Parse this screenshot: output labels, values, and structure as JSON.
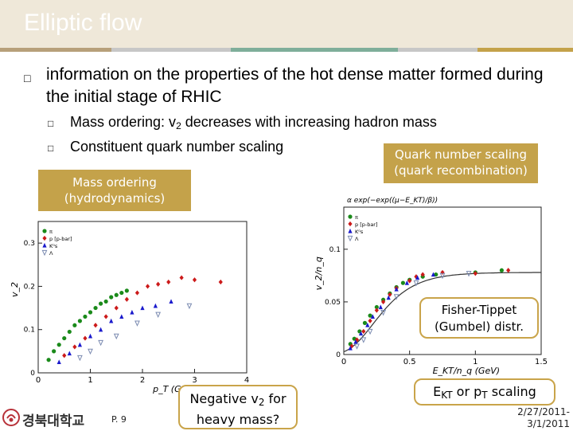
{
  "slide": {
    "title": "Elliptic flow",
    "bullet_main": "information on the properties of the hot dense matter formed during the initial stage of RHIC",
    "bullet_sub1_pre": "Mass ordering: v",
    "bullet_sub1_sub": "2",
    "bullet_sub1_post": " decreases with increasing hadron mass",
    "bullet_sub2": "Constituent quark number scaling",
    "tag_left_line1": "Mass ordering",
    "tag_left_line2": "(hydrodynamics)",
    "tag_right_line1": "Quark number scaling",
    "tag_right_line2": "(quark recombination)",
    "callout_fisher_line1": "Fisher-Tippet",
    "callout_fisher_line2": "(Gumbel) distr.",
    "callout_negative_pre": "Negative v",
    "callout_negative_sub": "2",
    "callout_negative_post": " for",
    "callout_negative_line2": "heavy mass?",
    "scaling_label_pre": "E",
    "scaling_label_sub1": "KT",
    "scaling_label_mid": " or p",
    "scaling_label_sub2": "T",
    "scaling_label_post": " scaling",
    "page_number": "P. 9",
    "university": "경북대학교",
    "date_line1": "2/27/2011-",
    "date_line2": "3/1/2011"
  },
  "colors": {
    "tag_bg": "#c4a24a",
    "stripes": [
      "#b7a07a",
      "#c7c7c7",
      "#7fae9a",
      "#c7c7c7",
      "#c4a24a"
    ],
    "pion": "#1a8a1a",
    "proton": "#cc1a1a",
    "kaon": "#1a1acc",
    "lambda": "#7a8ab0"
  },
  "chart_data": [
    {
      "type": "scatter",
      "title": "",
      "xlabel": "p_T (GeV)",
      "ylabel": "v_2",
      "xlim": [
        0,
        4
      ],
      "ylim": [
        0,
        0.35
      ],
      "x_ticks": [
        "0",
        "1",
        "2",
        "3",
        "4"
      ],
      "y_ticks": [
        "0",
        "0.1",
        "0.2",
        "0.3"
      ],
      "legend": [
        "π",
        "p [p-bar]",
        "K⁰s",
        "Λ"
      ],
      "legend_position": "top-left",
      "series": [
        {
          "name": "π",
          "points": [
            [
              0.2,
              0.03
            ],
            [
              0.3,
              0.05
            ],
            [
              0.4,
              0.065
            ],
            [
              0.5,
              0.08
            ],
            [
              0.6,
              0.095
            ],
            [
              0.7,
              0.11
            ],
            [
              0.8,
              0.12
            ],
            [
              0.9,
              0.13
            ],
            [
              1.0,
              0.14
            ],
            [
              1.1,
              0.15
            ],
            [
              1.2,
              0.16
            ],
            [
              1.3,
              0.165
            ],
            [
              1.4,
              0.175
            ],
            [
              1.5,
              0.18
            ],
            [
              1.6,
              0.185
            ],
            [
              1.7,
              0.19
            ]
          ]
        },
        {
          "name": "p [p-bar]",
          "points": [
            [
              0.5,
              0.04
            ],
            [
              0.7,
              0.06
            ],
            [
              0.9,
              0.08
            ],
            [
              1.1,
              0.11
            ],
            [
              1.3,
              0.13
            ],
            [
              1.5,
              0.15
            ],
            [
              1.7,
              0.17
            ],
            [
              1.9,
              0.185
            ],
            [
              2.1,
              0.2
            ],
            [
              2.3,
              0.205
            ],
            [
              2.5,
              0.21
            ],
            [
              2.75,
              0.22
            ],
            [
              3.0,
              0.215
            ],
            [
              3.5,
              0.21
            ]
          ]
        },
        {
          "name": "K⁰s",
          "points": [
            [
              0.4,
              0.025
            ],
            [
              0.6,
              0.045
            ],
            [
              0.8,
              0.065
            ],
            [
              1.0,
              0.085
            ],
            [
              1.2,
              0.1
            ],
            [
              1.4,
              0.12
            ],
            [
              1.6,
              0.13
            ],
            [
              1.8,
              0.14
            ],
            [
              2.0,
              0.15
            ],
            [
              2.25,
              0.155
            ],
            [
              2.55,
              0.165
            ]
          ]
        },
        {
          "name": "Λ",
          "points": [
            [
              0.8,
              0.035
            ],
            [
              1.0,
              0.05
            ],
            [
              1.2,
              0.07
            ],
            [
              1.5,
              0.085
            ],
            [
              1.9,
              0.115
            ],
            [
              2.3,
              0.135
            ],
            [
              2.9,
              0.155
            ]
          ]
        }
      ]
    },
    {
      "type": "scatter",
      "title": "α exp(−exp((μ−E_KT)/β))",
      "xlabel": "E_KT/n_q (GeV)",
      "ylabel": "v_2/n_q",
      "xlim": [
        0,
        1.5
      ],
      "ylim": [
        0,
        0.14
      ],
      "x_ticks": [
        "0",
        "0.5",
        "1",
        "1.5"
      ],
      "y_ticks": [
        "0",
        "0.05",
        "0.1"
      ],
      "legend": [
        "π",
        "p [p-bar]",
        "K⁰s",
        "Λ"
      ],
      "legend_position": "top-left",
      "fit_curve": {
        "alpha": 0.078,
        "mu": 0.22,
        "beta": 0.18
      },
      "series": [
        {
          "name": "π",
          "points": [
            [
              0.05,
              0.01
            ],
            [
              0.08,
              0.015
            ],
            [
              0.12,
              0.022
            ],
            [
              0.16,
              0.03
            ],
            [
              0.2,
              0.037
            ],
            [
              0.25,
              0.045
            ],
            [
              0.3,
              0.052
            ],
            [
              0.35,
              0.058
            ],
            [
              0.4,
              0.064
            ],
            [
              0.45,
              0.068
            ],
            [
              0.5,
              0.071
            ],
            [
              0.6,
              0.074
            ],
            [
              0.7,
              0.076
            ],
            [
              1.0,
              0.078
            ],
            [
              1.2,
              0.08
            ]
          ]
        },
        {
          "name": "p [p-bar]",
          "points": [
            [
              0.06,
              0.008
            ],
            [
              0.1,
              0.014
            ],
            [
              0.15,
              0.022
            ],
            [
              0.2,
              0.032
            ],
            [
              0.25,
              0.042
            ],
            [
              0.3,
              0.05
            ],
            [
              0.35,
              0.057
            ],
            [
              0.4,
              0.063
            ],
            [
              0.5,
              0.07
            ],
            [
              0.55,
              0.074
            ],
            [
              0.6,
              0.076
            ],
            [
              0.75,
              0.078
            ],
            [
              1.0,
              0.077
            ],
            [
              1.25,
              0.08
            ]
          ]
        },
        {
          "name": "K⁰s",
          "points": [
            [
              0.05,
              0.006
            ],
            [
              0.09,
              0.012
            ],
            [
              0.13,
              0.02
            ],
            [
              0.18,
              0.028
            ],
            [
              0.22,
              0.036
            ],
            [
              0.28,
              0.045
            ],
            [
              0.34,
              0.054
            ],
            [
              0.4,
              0.062
            ],
            [
              0.48,
              0.068
            ],
            [
              0.56,
              0.073
            ],
            [
              0.68,
              0.076
            ]
          ]
        },
        {
          "name": "Λ",
          "points": [
            [
              0.1,
              0.008
            ],
            [
              0.15,
              0.014
            ],
            [
              0.2,
              0.022
            ],
            [
              0.3,
              0.04
            ],
            [
              0.4,
              0.055
            ],
            [
              0.55,
              0.068
            ],
            [
              0.75,
              0.075
            ],
            [
              0.95,
              0.077
            ]
          ]
        }
      ]
    }
  ]
}
